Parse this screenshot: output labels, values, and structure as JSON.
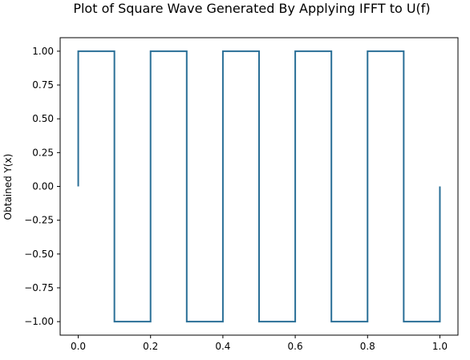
{
  "chart_data": {
    "type": "line",
    "title": "Plot of Square Wave Generated By Applying IFFT to U(f)",
    "xlabel": "",
    "ylabel": "Obtained Y(x)",
    "xlim": [
      -0.05,
      1.05
    ],
    "ylim": [
      -1.1,
      1.1
    ],
    "x_ticks": [
      0.0,
      0.2,
      0.4,
      0.6,
      0.8,
      1.0
    ],
    "x_tick_labels": [
      "0.0",
      "0.2",
      "0.4",
      "0.6",
      "0.8",
      "1.0"
    ],
    "y_ticks": [
      1.0,
      0.75,
      0.5,
      0.25,
      0.0,
      -0.25,
      -0.5,
      -0.75,
      -1.0
    ],
    "y_tick_labels": [
      "1.00",
      "0.75",
      "0.50",
      "0.25",
      "0.00",
      "−0.25",
      "−0.50",
      "−0.75",
      "−1.00"
    ],
    "grid": false,
    "series": [
      {
        "color": "#2a6f97",
        "x": [
          0.0,
          0.0,
          0.1,
          0.1,
          0.2,
          0.2,
          0.3,
          0.3,
          0.4,
          0.4,
          0.5,
          0.5,
          0.6,
          0.6,
          0.7,
          0.7,
          0.8,
          0.8,
          0.9,
          0.9,
          1.0,
          1.0
        ],
        "y": [
          0.0,
          1.0,
          1.0,
          -1.0,
          -1.0,
          1.0,
          1.0,
          -1.0,
          -1.0,
          1.0,
          1.0,
          -1.0,
          -1.0,
          1.0,
          1.0,
          -1.0,
          -1.0,
          1.0,
          1.0,
          -1.0,
          -1.0,
          0.0
        ]
      }
    ]
  }
}
